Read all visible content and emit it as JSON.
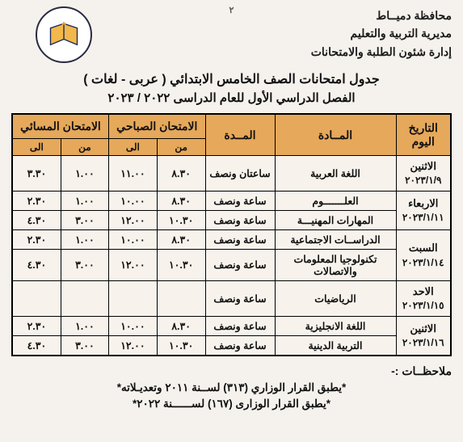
{
  "page_number": "٢",
  "header": {
    "line1": "محافظة دميــاط",
    "line2": "مديرية التربية والتعليم",
    "line3": "إدارة شئون الطلبة والامتحانات"
  },
  "titles": {
    "main": "جدول امتحانات الصف الخامس الابتدائي ( عربى - لغات )",
    "sub": "الفصل الدراسي الأول للعام الدراسى  ٢٠٢٢ / ٢٠٢٣"
  },
  "colors": {
    "header_bg": "#e6a85a",
    "border": "#000000",
    "page_bg": "#f5f2ed"
  },
  "table": {
    "head": {
      "date": "التاريخ\nاليوم",
      "subject": "المــادة",
      "duration": "المــدة",
      "morning": "الامتحان الصباحي",
      "evening": "الامتحان المسائي",
      "from": "من",
      "to": "الى"
    },
    "rows": [
      {
        "day": "الاثنين",
        "date": "٢٠٢٣/١/٩",
        "exams": [
          {
            "subject": "اللغة العربية",
            "duration": "ساعتان ونصف",
            "m_from": "٨.٣٠",
            "m_to": "١١.٠٠",
            "e_from": "١.٠٠",
            "e_to": "٣.٣٠"
          }
        ]
      },
      {
        "day": "الاربعاء",
        "date": "٢٠٢٣/١/١١",
        "exams": [
          {
            "subject": "العلـــــــوم",
            "duration": "ساعة ونصف",
            "m_from": "٨.٣٠",
            "m_to": "١٠.٠٠",
            "e_from": "١.٠٠",
            "e_to": "٢.٣٠"
          },
          {
            "subject": "المهارات المهنيـــة",
            "duration": "ساعة ونصف",
            "m_from": "١٠.٣٠",
            "m_to": "١٢.٠٠",
            "e_from": "٣.٠٠",
            "e_to": "٤.٣٠"
          }
        ]
      },
      {
        "day": "السبت",
        "date": "٢٠٢٣/١/١٤",
        "exams": [
          {
            "subject": "الدراســات الاجتماعية",
            "duration": "ساعة ونصف",
            "m_from": "٨.٣٠",
            "m_to": "١٠.٠٠",
            "e_from": "١.٠٠",
            "e_to": "٢.٣٠"
          },
          {
            "subject": "تكنولوجيا المعلومات والاتصالات",
            "duration": "ساعة ونصف",
            "m_from": "١٠.٣٠",
            "m_to": "١٢.٠٠",
            "e_from": "٣.٠٠",
            "e_to": "٤.٣٠"
          }
        ]
      },
      {
        "day": "الاحد",
        "date": "٢٠٢٣/١/١٥",
        "exams": [
          {
            "subject": "الرياضيات",
            "duration": "ساعة ونصف",
            "m_from": "",
            "m_to": "",
            "e_from": "",
            "e_to": ""
          }
        ]
      },
      {
        "day": "الاثنين",
        "date": "٢٠٢٣/١/١٦",
        "exams": [
          {
            "subject": "اللغة الانجليزية",
            "duration": "ساعة ونصف",
            "m_from": "٨.٣٠",
            "m_to": "١٠.٠٠",
            "e_from": "١.٠٠",
            "e_to": "٢.٣٠"
          },
          {
            "subject": "التربية الدينية",
            "duration": "ساعة ونصف",
            "m_from": "١٠.٣٠",
            "m_to": "١٢.٠٠",
            "e_from": "٣.٠٠",
            "e_to": "٤.٣٠"
          }
        ]
      }
    ]
  },
  "notes": {
    "title": "ملاحظــات  :-",
    "line1": "*يطبق القرار الوزاري (٣١٣) لســنة ٢٠١١ وتعديـلاته*",
    "line2": "*يطبق القرار الوزارى (١٦٧) لســــــنة ٢٠٢٢*"
  }
}
